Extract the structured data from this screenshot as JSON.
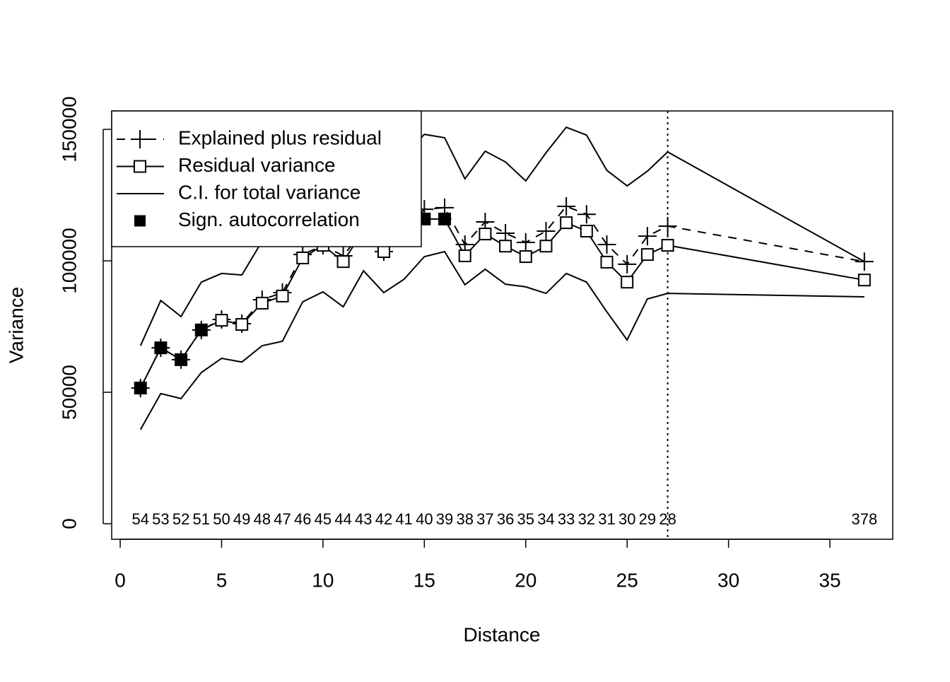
{
  "chart_data": {
    "type": "line",
    "xlabel": "Distance",
    "ylabel": "Variance",
    "x": [
      1,
      2,
      3,
      4,
      5,
      6,
      7,
      8,
      9,
      10,
      11,
      12,
      13,
      14,
      15,
      16,
      17,
      18,
      19,
      20,
      21,
      22,
      23,
      24,
      25,
      26,
      27,
      36.7
    ],
    "xlim": [
      -0.42,
      38.1
    ],
    "xticks": [
      0,
      5,
      10,
      15,
      20,
      25,
      30,
      35
    ],
    "ylim": [
      -5900,
      157000
    ],
    "yticks": [
      0,
      50000,
      100000,
      150000
    ],
    "vline": 27,
    "counts": [
      54,
      53,
      52,
      51,
      50,
      49,
      48,
      47,
      46,
      45,
      44,
      43,
      42,
      41,
      40,
      39,
      38,
      37,
      36,
      35,
      34,
      33,
      32,
      31,
      30,
      29,
      28,
      378
    ],
    "legend": "topleft",
    "series": [
      {
        "name": "Explained plus residual",
        "color": "#000000",
        "marker": "plus",
        "dash": true,
        "values": [
          51600,
          66900,
          62400,
          73700,
          77700,
          76100,
          85200,
          87900,
          102400,
          105900,
          101900,
          111600,
          103500,
          110200,
          119600,
          120200,
          106200,
          114800,
          110500,
          107000,
          111300,
          120700,
          117700,
          106200,
          98700,
          109400,
          113200,
          99700
        ]
      },
      {
        "name": "Residual variance",
        "color": "#000000",
        "marker": "square",
        "dash": false,
        "values": [
          51600,
          66900,
          62400,
          73700,
          77400,
          75800,
          83900,
          86600,
          101100,
          105900,
          99700,
          111600,
          103500,
          110200,
          115900,
          115900,
          101900,
          110200,
          105600,
          101600,
          105600,
          114500,
          111300,
          99500,
          91900,
          102400,
          105900,
          92700
        ]
      },
      {
        "name": "C.I. for total variance",
        "color": "#000000",
        "marker": "none",
        "dash": false,
        "upper": [
          67700,
          84900,
          78800,
          91900,
          95200,
          94600,
          107500,
          110500,
          115900,
          121200,
          126600,
          134700,
          132000,
          140000,
          148100,
          146800,
          131200,
          141700,
          137600,
          130400,
          141100,
          150800,
          147800,
          134400,
          128500,
          134100,
          141400,
          99700
        ],
        "lower": [
          35800,
          49500,
          47600,
          57500,
          62900,
          61500,
          67700,
          69400,
          84400,
          88200,
          82500,
          96200,
          87900,
          93000,
          101600,
          103500,
          90900,
          96800,
          91100,
          90100,
          87600,
          95200,
          91900,
          80600,
          69900,
          85500,
          87600,
          86300
        ]
      },
      {
        "name": "Sign. autocorrelation",
        "color": "#000000",
        "marker": "filled-square",
        "dash": false,
        "values": [
          51600,
          66900,
          62400,
          73700,
          null,
          null,
          null,
          null,
          null,
          null,
          null,
          null,
          null,
          null,
          115900,
          115900,
          null,
          null,
          null,
          null,
          null,
          null,
          null,
          null,
          null,
          null,
          null,
          null
        ]
      }
    ]
  }
}
